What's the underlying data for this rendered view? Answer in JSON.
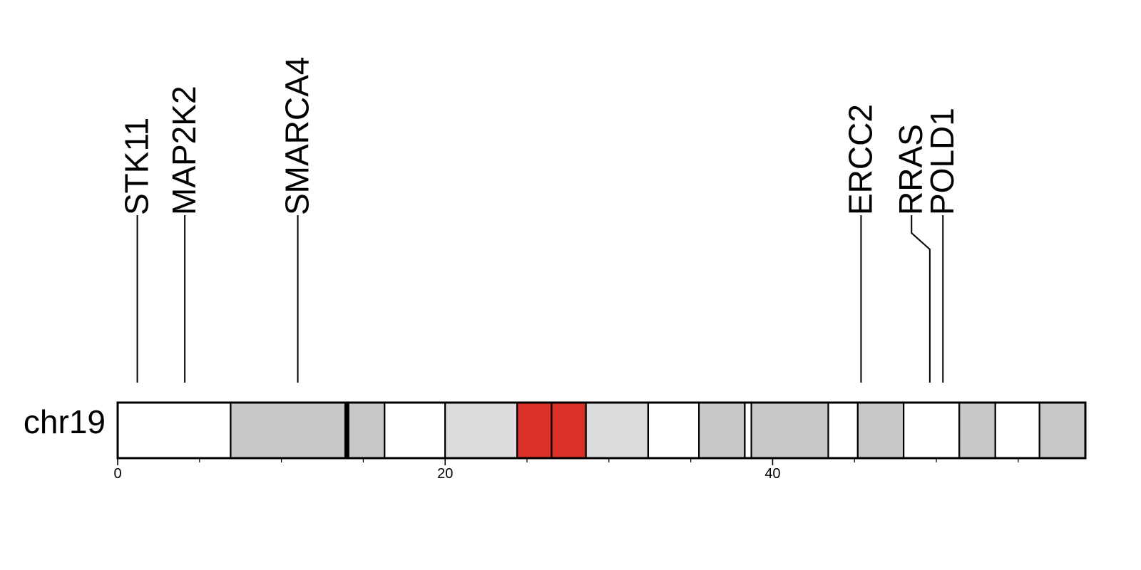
{
  "chromosome": {
    "name": "chr19",
    "length": 59.1,
    "bands": [
      {
        "start": 0.0,
        "end": 6.9,
        "color": "#ffffff"
      },
      {
        "start": 6.9,
        "end": 13.9,
        "color": "#c8c8c8"
      },
      {
        "start": 13.9,
        "end": 14.1,
        "color": "#000000"
      },
      {
        "start": 14.1,
        "end": 16.3,
        "color": "#c8c8c8"
      },
      {
        "start": 16.3,
        "end": 20.0,
        "color": "#ffffff"
      },
      {
        "start": 20.0,
        "end": 24.4,
        "color": "#dcdcdc"
      },
      {
        "start": 24.4,
        "end": 26.5,
        "color": "#d93028"
      },
      {
        "start": 26.5,
        "end": 28.6,
        "color": "#d93028"
      },
      {
        "start": 28.6,
        "end": 32.4,
        "color": "#dcdcdc"
      },
      {
        "start": 32.4,
        "end": 35.5,
        "color": "#ffffff"
      },
      {
        "start": 35.5,
        "end": 38.3,
        "color": "#c8c8c8"
      },
      {
        "start": 38.3,
        "end": 38.7,
        "color": "#ffffff"
      },
      {
        "start": 38.7,
        "end": 43.4,
        "color": "#c8c8c8"
      },
      {
        "start": 43.4,
        "end": 45.2,
        "color": "#ffffff"
      },
      {
        "start": 45.2,
        "end": 48.0,
        "color": "#c8c8c8"
      },
      {
        "start": 48.0,
        "end": 51.4,
        "color": "#ffffff"
      },
      {
        "start": 51.4,
        "end": 53.6,
        "color": "#c8c8c8"
      },
      {
        "start": 53.6,
        "end": 56.3,
        "color": "#ffffff"
      },
      {
        "start": 56.3,
        "end": 59.1,
        "color": "#c8c8c8"
      }
    ]
  },
  "axis": {
    "major_ticks": [
      0,
      20,
      40
    ],
    "major_labels": [
      "0",
      "20",
      "40"
    ],
    "minor_ticks": [
      5,
      10,
      15,
      25,
      30,
      35,
      45,
      50,
      55
    ]
  },
  "genes": [
    {
      "name": "STK11",
      "position": 1.2
    },
    {
      "name": "MAP2K2",
      "position": 4.1
    },
    {
      "name": "SMARCA4",
      "position": 11.0
    },
    {
      "name": "ERCC2",
      "position": 45.4
    },
    {
      "name": "RRAS",
      "position": 49.6
    },
    {
      "name": "POLD1",
      "position": 50.4
    }
  ]
}
